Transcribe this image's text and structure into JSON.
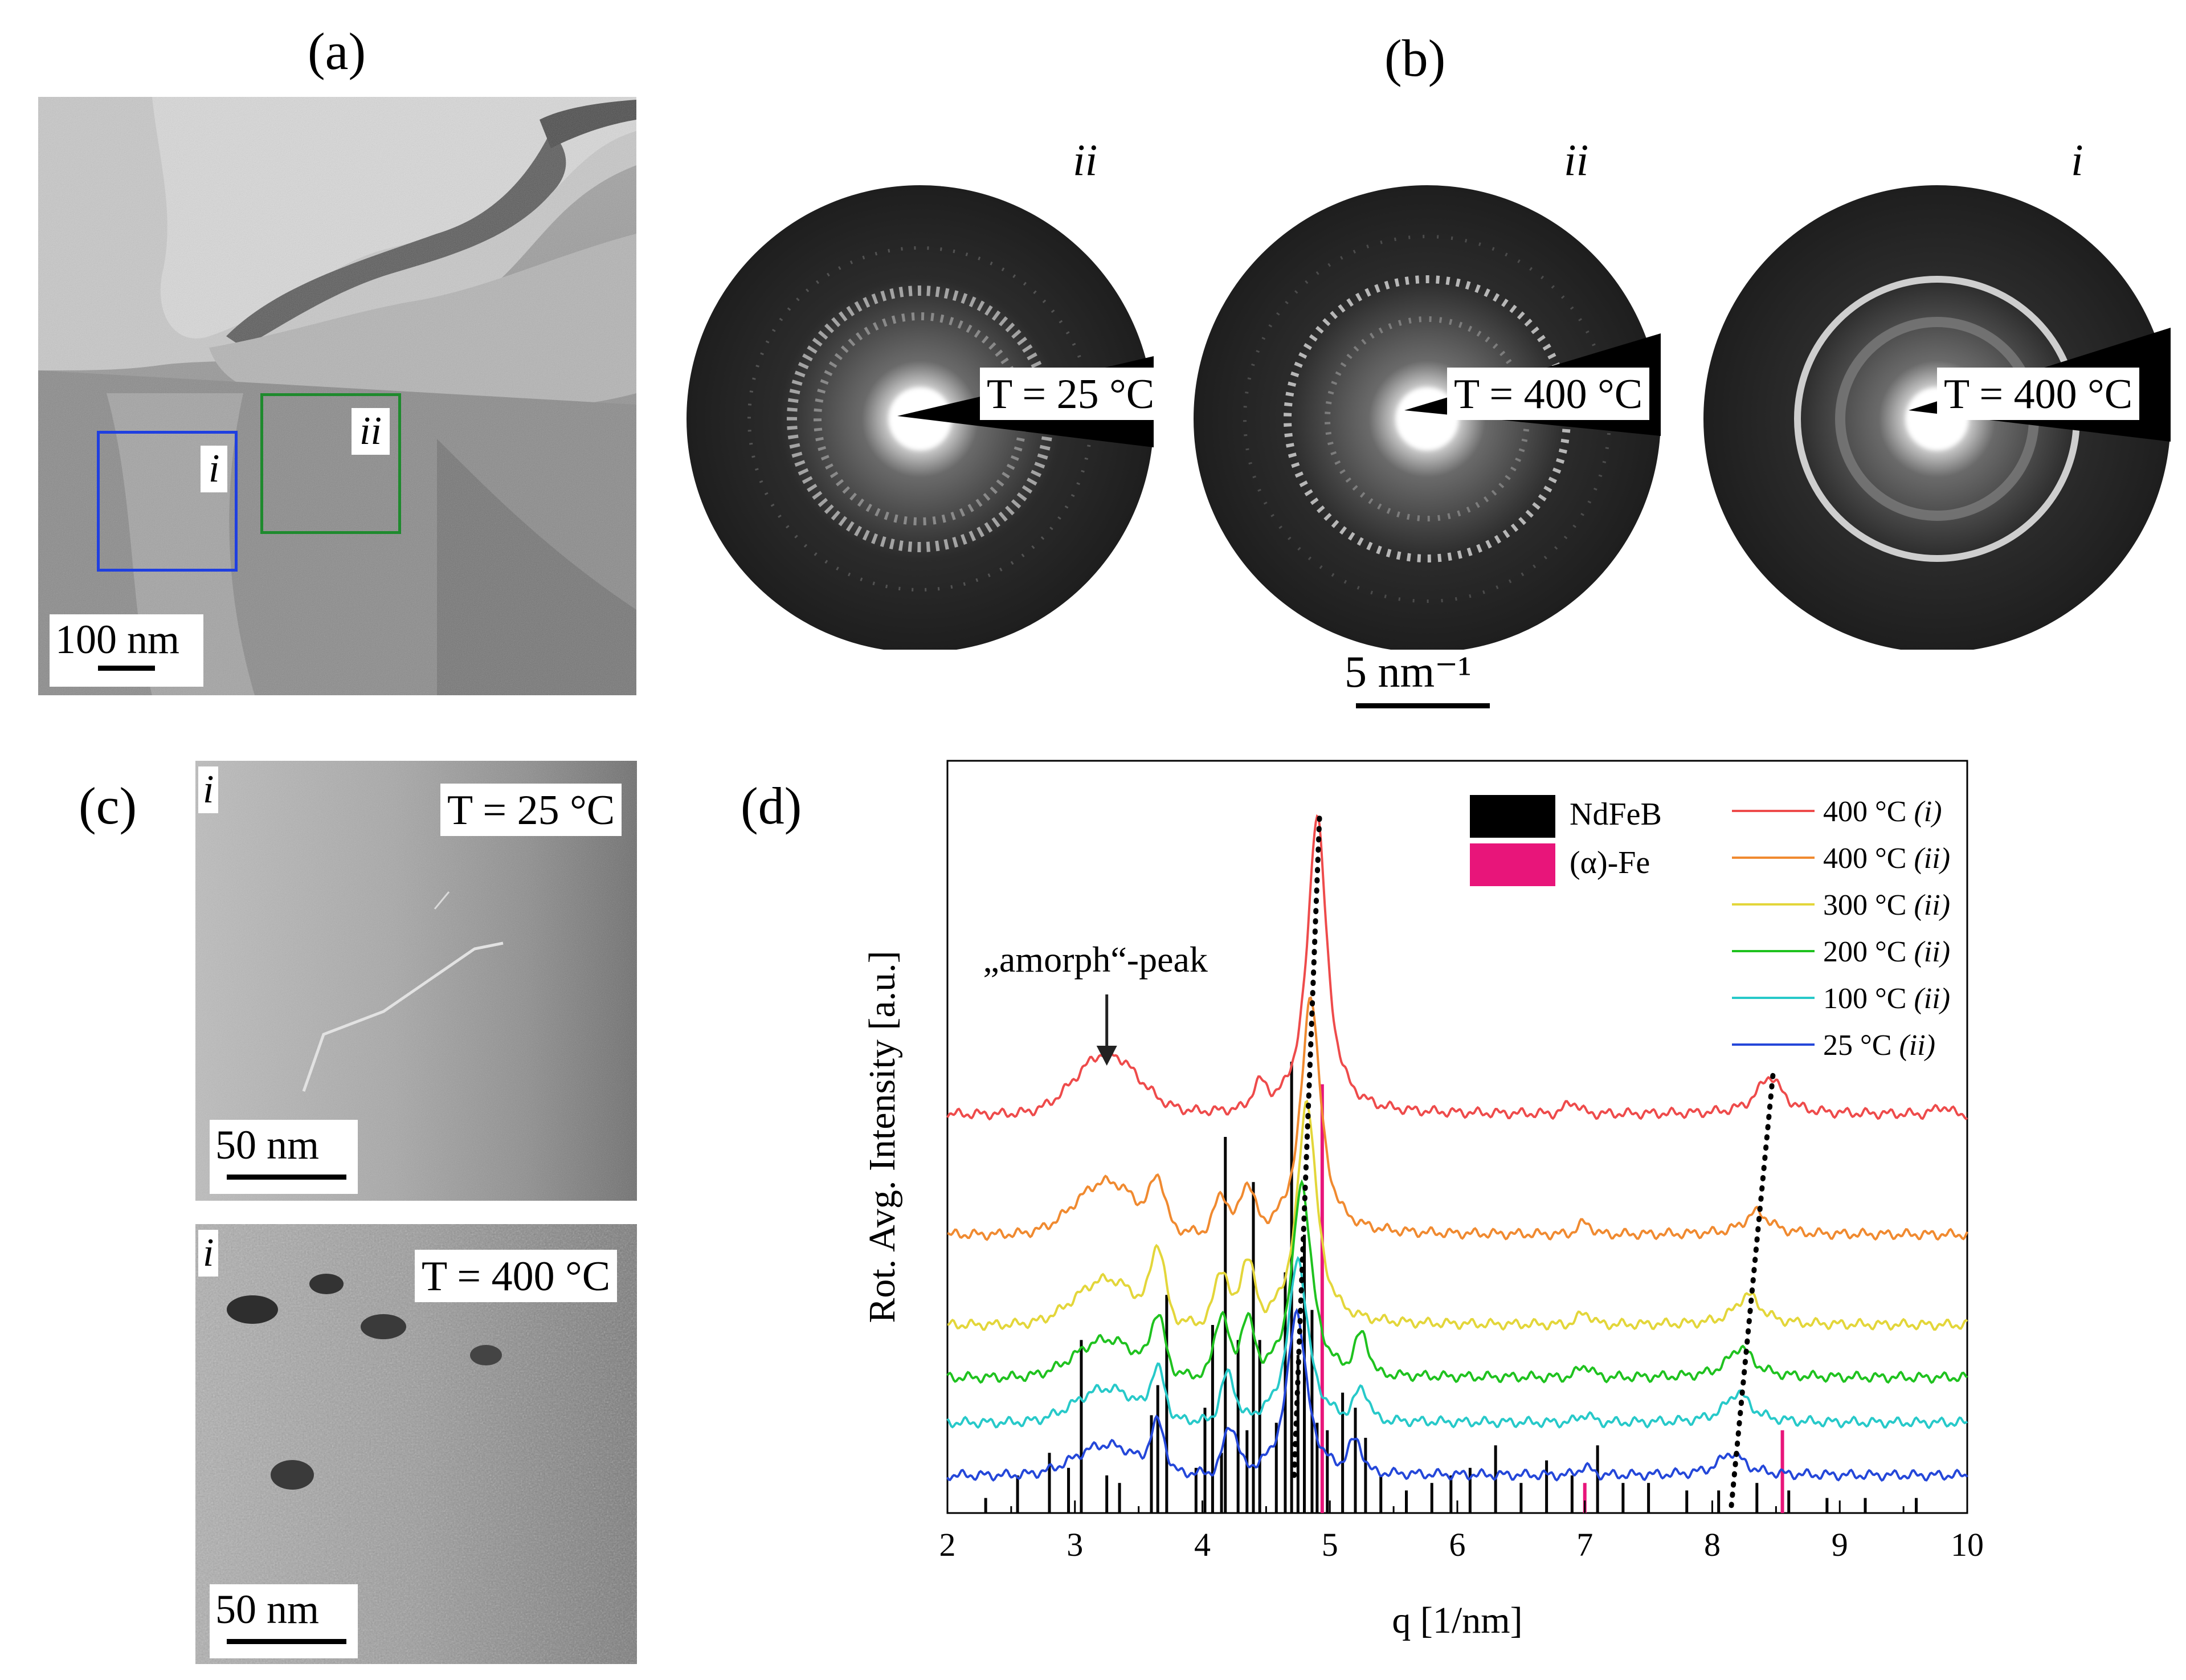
{
  "figure": {
    "panels": {
      "a": {
        "label": "(a)",
        "scale_bar": "100 nm",
        "roi": [
          {
            "name": "i",
            "color": "#1f3fe0"
          },
          {
            "name": "ii",
            "color": "#1f8a2e"
          }
        ]
      },
      "b": {
        "label": "(b)",
        "patterns": [
          {
            "region": "ii",
            "temperature": "T = 25 °C"
          },
          {
            "region": "ii",
            "temperature": "T = 400 °C"
          },
          {
            "region": "i",
            "temperature": "T = 400 °C"
          }
        ],
        "scale_bar": "5 nm⁻¹"
      },
      "c": {
        "label": "(c)",
        "images": [
          {
            "region": "i",
            "temperature": "T = 25 °C",
            "scale_bar": "50 nm"
          },
          {
            "region": "i",
            "temperature": "T = 400 °C",
            "scale_bar": "50 nm"
          }
        ]
      },
      "d": {
        "label": "(d)"
      }
    }
  },
  "chart_data": {
    "type": "line",
    "xlabel": "q [1/nm]",
    "ylabel": "Rot. Avg. Intensity [a.u.]",
    "xlim": [
      2,
      10
    ],
    "xticks": [
      "2",
      "3",
      "4",
      "5",
      "6",
      "7",
      "8",
      "9",
      "10"
    ],
    "annotation": "„amorph“-peak",
    "annotation_q": 3.25,
    "reference_legend": [
      {
        "name": "NdFeB",
        "color": "#000000"
      },
      {
        "name": "(α)-Fe",
        "color": "#e8157a"
      }
    ],
    "series": [
      {
        "temp": "400 °C",
        "region": "(i)",
        "color": "#ee4b4b",
        "offset": 0.53,
        "amorph": 0.08,
        "main_peak": [
          4.9,
          0.4
        ],
        "peak2": [
          8.45,
          0.05
        ],
        "minor": [
          [
            4.45,
            0.03
          ],
          [
            6.9,
            0.015
          ],
          [
            9.8,
            0.01
          ]
        ]
      },
      {
        "temp": "400 °C",
        "region": "(ii)",
        "color": "#f08a30",
        "offset": 0.37,
        "amorph": 0.07,
        "main_peak": [
          4.85,
          0.32
        ],
        "peak2": [
          8.35,
          0.03
        ],
        "minor": [
          [
            3.65,
            0.06
          ],
          [
            4.15,
            0.05
          ],
          [
            4.35,
            0.06
          ],
          [
            7.0,
            0.015
          ]
        ]
      },
      {
        "temp": "300 °C",
        "region": "(ii)",
        "color": "#e3d63a",
        "offset": 0.25,
        "amorph": 0.06,
        "main_peak": [
          4.82,
          0.3
        ],
        "peak2": [
          8.28,
          0.04
        ],
        "minor": [
          [
            3.65,
            0.09
          ],
          [
            4.15,
            0.07
          ],
          [
            4.35,
            0.08
          ],
          [
            7.0,
            0.015
          ]
        ]
      },
      {
        "temp": "200 °C",
        "region": "(ii)",
        "color": "#1fc21f",
        "offset": 0.18,
        "amorph": 0.05,
        "main_peak": [
          4.78,
          0.26
        ],
        "peak2": [
          8.22,
          0.04
        ],
        "minor": [
          [
            3.65,
            0.07
          ],
          [
            4.15,
            0.08
          ],
          [
            4.35,
            0.07
          ],
          [
            5.25,
            0.05
          ],
          [
            7.0,
            0.015
          ]
        ]
      },
      {
        "temp": "100 °C",
        "region": "(ii)",
        "color": "#27c9c9",
        "offset": 0.12,
        "amorph": 0.045,
        "main_peak": [
          4.75,
          0.22
        ],
        "peak2": [
          8.2,
          0.04
        ],
        "minor": [
          [
            3.65,
            0.06
          ],
          [
            4.2,
            0.06
          ],
          [
            5.25,
            0.04
          ],
          [
            7.0,
            0.01
          ]
        ]
      },
      {
        "temp": "25 °C",
        "region": "(ii)",
        "color": "#2447d9",
        "offset": 0.05,
        "amorph": 0.04,
        "main_peak": [
          4.74,
          0.22
        ],
        "peak2": [
          8.15,
          0.03
        ],
        "minor": [
          [
            3.65,
            0.06
          ],
          [
            4.22,
            0.06
          ],
          [
            5.2,
            0.04
          ],
          [
            7.0,
            0.01
          ]
        ]
      }
    ],
    "dotted_guides": [
      {
        "from": [
          4.72,
          0.05
        ],
        "to": [
          4.92,
          0.93
        ]
      },
      {
        "from": [
          8.15,
          0.01
        ],
        "to": [
          8.48,
          0.59
        ]
      }
    ],
    "ndfeb_ticks": [
      [
        2.3,
        0.02
      ],
      [
        2.55,
        0.05
      ],
      [
        2.8,
        0.08
      ],
      [
        2.95,
        0.06
      ],
      [
        3.05,
        0.23
      ],
      [
        3.25,
        0.05
      ],
      [
        3.35,
        0.04
      ],
      [
        3.6,
        0.13
      ],
      [
        3.65,
        0.17
      ],
      [
        3.72,
        0.29
      ],
      [
        3.95,
        0.06
      ],
      [
        4.02,
        0.14
      ],
      [
        4.08,
        0.25
      ],
      [
        4.15,
        0.08
      ],
      [
        4.18,
        0.5
      ],
      [
        4.28,
        0.23
      ],
      [
        4.35,
        0.11
      ],
      [
        4.4,
        0.44
      ],
      [
        4.45,
        0.23
      ],
      [
        4.58,
        0.12
      ],
      [
        4.65,
        0.32
      ],
      [
        4.7,
        0.6
      ],
      [
        4.75,
        0.21
      ],
      [
        4.8,
        0.37
      ],
      [
        4.86,
        0.27
      ],
      [
        4.9,
        0.12
      ],
      [
        4.98,
        0.11
      ],
      [
        5.1,
        0.16
      ],
      [
        5.2,
        0.14
      ],
      [
        5.28,
        0.1
      ],
      [
        5.4,
        0.05
      ],
      [
        5.6,
        0.03
      ],
      [
        5.8,
        0.04
      ],
      [
        5.95,
        0.05
      ],
      [
        6.1,
        0.06
      ],
      [
        6.3,
        0.09
      ],
      [
        6.5,
        0.04
      ],
      [
        6.7,
        0.07
      ],
      [
        6.9,
        0.05
      ],
      [
        7.1,
        0.09
      ],
      [
        7.3,
        0.04
      ],
      [
        7.5,
        0.04
      ],
      [
        7.8,
        0.03
      ],
      [
        8.05,
        0.03
      ],
      [
        8.35,
        0.04
      ],
      [
        8.6,
        0.03
      ],
      [
        8.9,
        0.02
      ],
      [
        9.2,
        0.02
      ],
      [
        9.6,
        0.02
      ]
    ],
    "fe_ticks": [
      [
        4.94,
        0.57
      ],
      [
        7.0,
        0.04
      ],
      [
        8.55,
        0.11
      ]
    ]
  }
}
